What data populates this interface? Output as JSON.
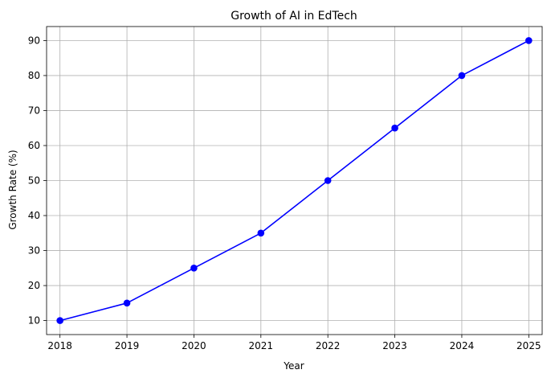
{
  "chart_data": {
    "type": "line",
    "title": "Growth of AI in EdTech",
    "xlabel": "Year",
    "ylabel": "Growth Rate (%)",
    "categories": [
      "2018",
      "2019",
      "2020",
      "2021",
      "2022",
      "2023",
      "2024",
      "2025"
    ],
    "series": [
      {
        "values": [
          10,
          15,
          25,
          35,
          50,
          65,
          80,
          90
        ],
        "color": "#0000ff",
        "marker": "circle"
      }
    ],
    "yticks": [
      "10",
      "20",
      "30",
      "40",
      "50",
      "60",
      "70",
      "80",
      "90"
    ],
    "ylim": [
      6,
      94
    ],
    "grid": true,
    "legend": "none"
  }
}
